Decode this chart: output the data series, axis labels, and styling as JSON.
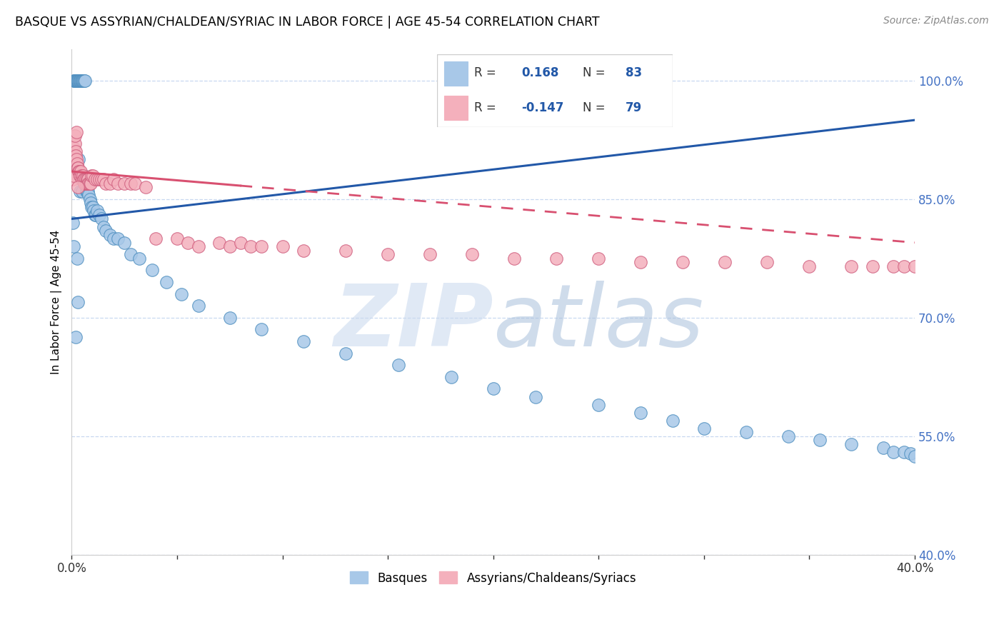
{
  "title": "BASQUE VS ASSYRIAN/CHALDEAN/SYRIAC IN LABOR FORCE | AGE 45-54 CORRELATION CHART",
  "source": "Source: ZipAtlas.com",
  "ylabel": "In Labor Force | Age 45-54",
  "legend_label_blue": "Basques",
  "legend_label_pink": "Assyrians/Chaldeans/Syriacs",
  "legend_blue_r": "0.168",
  "legend_blue_n": "83",
  "legend_pink_r": "-0.147",
  "legend_pink_n": "79",
  "blue_color": "#A8C8E8",
  "blue_edge": "#5090C0",
  "pink_color": "#F4B0BC",
  "pink_edge": "#D06080",
  "blue_line_color": "#2258A8",
  "pink_line_color": "#D85070",
  "watermark_zip_color": "#C8D8EE",
  "watermark_atlas_color": "#A8C0DC",
  "grid_color": "#C8D8F0",
  "right_tick_color": "#4472C4",
  "x_lim": [
    0.0,
    40.0
  ],
  "y_lim": [
    40.0,
    104.0
  ],
  "y_ticks": [
    40,
    55,
    70,
    85,
    100
  ],
  "blue_x": [
    0.05,
    0.08,
    0.1,
    0.12,
    0.15,
    0.18,
    0.2,
    0.22,
    0.25,
    0.28,
    0.3,
    0.32,
    0.32,
    0.35,
    0.35,
    0.38,
    0.4,
    0.4,
    0.42,
    0.45,
    0.45,
    0.48,
    0.5,
    0.5,
    0.52,
    0.55,
    0.55,
    0.58,
    0.6,
    0.62,
    0.65,
    0.68,
    0.7,
    0.72,
    0.75,
    0.78,
    0.8,
    0.85,
    0.9,
    0.95,
    1.0,
    1.05,
    1.1,
    1.15,
    1.2,
    1.3,
    1.4,
    1.5,
    1.6,
    1.8,
    2.0,
    2.2,
    2.5,
    2.8,
    3.2,
    3.8,
    4.5,
    5.2,
    6.0,
    7.5,
    9.0,
    11.0,
    13.0,
    15.5,
    18.0,
    20.0,
    22.0,
    25.0,
    27.0,
    28.5,
    30.0,
    32.0,
    34.0,
    35.5,
    37.0,
    38.5,
    39.0,
    39.5,
    39.8,
    40.0,
    0.18,
    0.25,
    0.3
  ],
  "blue_y": [
    82.0,
    79.0,
    100.0,
    100.0,
    100.0,
    100.0,
    100.0,
    100.0,
    100.0,
    100.0,
    100.0,
    100.0,
    90.0,
    100.0,
    88.0,
    100.0,
    100.0,
    86.0,
    100.0,
    100.0,
    87.5,
    100.0,
    100.0,
    86.0,
    100.0,
    100.0,
    88.0,
    100.0,
    87.0,
    100.0,
    87.0,
    86.5,
    86.0,
    86.0,
    86.5,
    86.0,
    85.5,
    85.0,
    84.5,
    84.0,
    84.0,
    83.5,
    83.0,
    83.0,
    83.5,
    83.0,
    82.5,
    81.5,
    81.0,
    80.5,
    80.0,
    80.0,
    79.5,
    78.0,
    77.5,
    76.0,
    74.5,
    73.0,
    71.5,
    70.0,
    68.5,
    67.0,
    65.5,
    64.0,
    62.5,
    61.0,
    60.0,
    59.0,
    58.0,
    57.0,
    56.0,
    55.5,
    55.0,
    54.5,
    54.0,
    53.5,
    53.0,
    53.0,
    52.8,
    52.5,
    67.5,
    77.5,
    72.0
  ],
  "pink_x": [
    0.05,
    0.08,
    0.1,
    0.12,
    0.15,
    0.18,
    0.2,
    0.22,
    0.25,
    0.28,
    0.3,
    0.32,
    0.35,
    0.38,
    0.4,
    0.42,
    0.45,
    0.48,
    0.5,
    0.52,
    0.55,
    0.58,
    0.6,
    0.62,
    0.65,
    0.68,
    0.7,
    0.72,
    0.75,
    0.78,
    0.8,
    0.85,
    0.9,
    0.95,
    1.0,
    1.1,
    1.2,
    1.3,
    1.4,
    1.5,
    1.6,
    1.8,
    2.0,
    2.2,
    2.5,
    2.8,
    3.0,
    3.5,
    4.0,
    5.0,
    5.5,
    6.0,
    7.0,
    7.5,
    8.0,
    8.5,
    9.0,
    10.0,
    11.0,
    13.0,
    15.0,
    17.0,
    19.0,
    21.0,
    23.0,
    25.0,
    27.0,
    29.0,
    31.0,
    33.0,
    35.0,
    37.0,
    38.0,
    39.0,
    39.5,
    40.0,
    0.15,
    0.22,
    0.28
  ],
  "pink_y": [
    87.5,
    88.0,
    91.5,
    90.5,
    92.0,
    91.0,
    90.5,
    90.0,
    89.5,
    89.0,
    89.0,
    88.5,
    88.5,
    88.0,
    88.0,
    88.5,
    88.0,
    87.5,
    87.5,
    88.0,
    87.5,
    87.0,
    87.5,
    87.0,
    87.5,
    87.0,
    87.0,
    87.5,
    87.5,
    87.0,
    87.0,
    87.0,
    87.0,
    88.0,
    88.0,
    87.5,
    87.5,
    87.5,
    87.5,
    87.5,
    87.0,
    87.0,
    87.5,
    87.0,
    87.0,
    87.0,
    87.0,
    86.5,
    80.0,
    80.0,
    79.5,
    79.0,
    79.5,
    79.0,
    79.5,
    79.0,
    79.0,
    79.0,
    78.5,
    78.5,
    78.0,
    78.0,
    78.0,
    77.5,
    77.5,
    77.5,
    77.0,
    77.0,
    77.0,
    77.0,
    76.5,
    76.5,
    76.5,
    76.5,
    76.5,
    76.5,
    93.0,
    93.5,
    86.5
  ],
  "pink_solid_x_end": 8.0,
  "blue_trend_x0": 0.0,
  "blue_trend_y0": 82.5,
  "blue_trend_x1": 40.0,
  "blue_trend_y1": 95.0,
  "pink_trend_x0": 0.0,
  "pink_trend_y0": 88.5,
  "pink_trend_x1": 40.0,
  "pink_trend_y1": 79.5
}
